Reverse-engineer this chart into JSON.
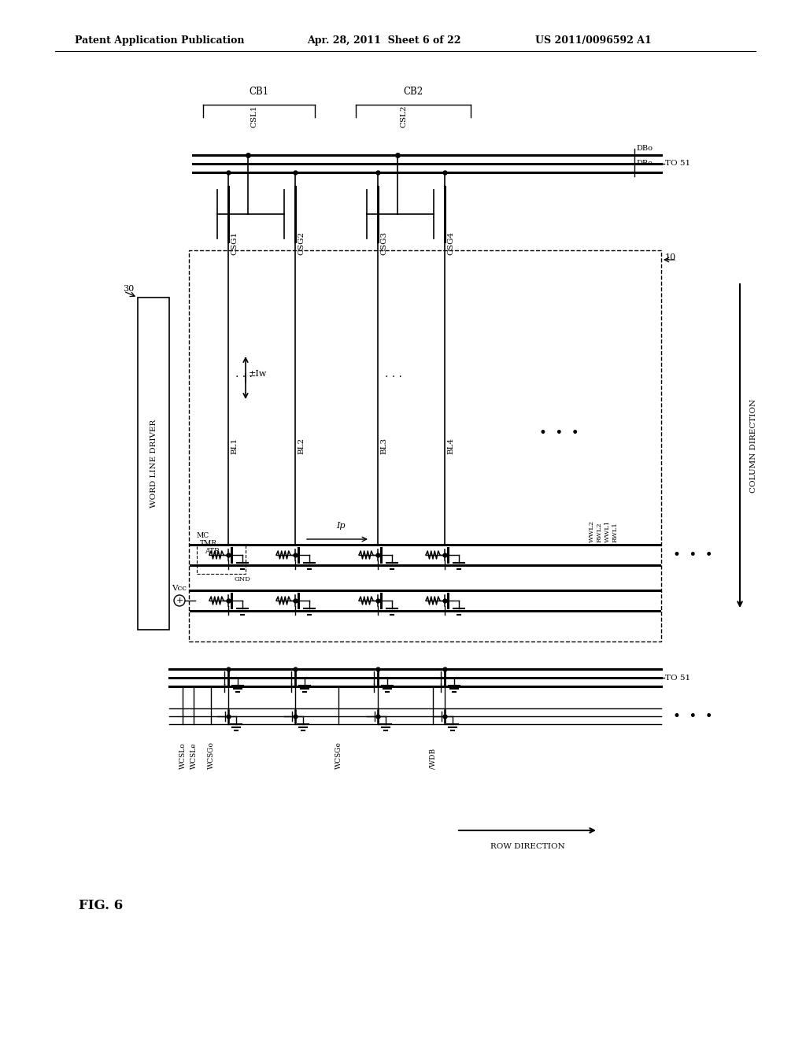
{
  "bg_color": "#ffffff",
  "header_left": "Patent Application Publication",
  "header_center": "Apr. 28, 2011  Sheet 6 of 22",
  "header_right": "US 2011/0096592 A1",
  "fig_label": "FIG. 6"
}
